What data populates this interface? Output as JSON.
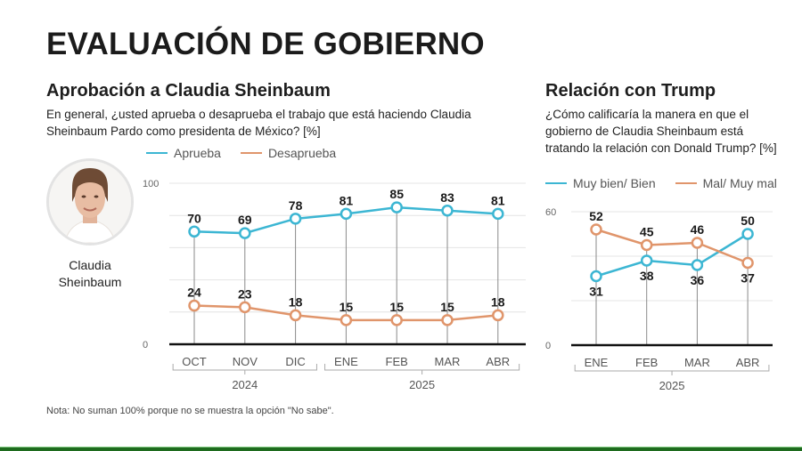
{
  "header": {
    "title": "EVALUACIÓN DE GOBIERNO"
  },
  "colors": {
    "approve": "#3cb6d3",
    "disapprove": "#e0956b",
    "brand_green": "#1e6b1e"
  },
  "left_panel": {
    "title": "Aprobación a Claudia Sheinbaum",
    "question": "En general, ¿usted aprueba o desaprueba el trabajo que está haciendo Claudia Sheinbaum Pardo como presidenta de México?  [%]",
    "legend": [
      "Aprueba",
      "Desaprueba"
    ],
    "person": {
      "name_line1": "Claudia",
      "name_line2": "Sheinbaum",
      "icon": "portrait-avatar"
    }
  },
  "right_panel": {
    "title": "Relación con Trump",
    "question": "¿Cómo calificaría la manera en que el gobierno de Claudia Sheinbaum está tratando la relación con Donald Trump? [%]",
    "legend": [
      "Muy bien/ Bien",
      "Mal/ Muy mal"
    ]
  },
  "note": "Nota: No suman 100% porque no se muestra la opción \"No sabe\".",
  "chart_data": [
    {
      "type": "line",
      "title": "Aprobación a Claudia Sheinbaum",
      "categories": [
        "OCT",
        "NOV",
        "DIC",
        "ENE",
        "FEB",
        "MAR",
        "ABR"
      ],
      "year_groups": [
        {
          "label": "2024",
          "from": 0,
          "to": 2
        },
        {
          "label": "2025",
          "from": 3,
          "to": 6
        }
      ],
      "series": [
        {
          "name": "Aprueba",
          "color": "#3cb6d3",
          "values": [
            70,
            69,
            78,
            81,
            85,
            83,
            81
          ],
          "label_pos": "above"
        },
        {
          "name": "Desaprueba",
          "color": "#e0956b",
          "values": [
            24,
            23,
            18,
            15,
            15,
            15,
            18
          ],
          "label_pos": "above"
        }
      ],
      "ylim": [
        0,
        100
      ],
      "yticks_labeled": [
        0,
        100
      ],
      "gridlines": [
        20,
        40,
        60,
        80,
        100
      ],
      "xlabel": "",
      "ylabel": "%",
      "grid": true,
      "legend": "top-left"
    },
    {
      "type": "line",
      "title": "Relación con Trump",
      "categories": [
        "ENE",
        "FEB",
        "MAR",
        "ABR"
      ],
      "year_groups": [
        {
          "label": "2025",
          "from": 0,
          "to": 3
        }
      ],
      "series": [
        {
          "name": "Muy bien/ Bien",
          "color": "#3cb6d3",
          "values": [
            31,
            38,
            36,
            50
          ],
          "label_pos": [
            "below",
            "below",
            "below",
            "above"
          ]
        },
        {
          "name": "Mal/ Muy mal",
          "color": "#e0956b",
          "values": [
            52,
            45,
            46,
            37
          ],
          "label_pos": [
            "above",
            "above",
            "above",
            "below"
          ]
        }
      ],
      "ylim": [
        0,
        60
      ],
      "yticks_labeled": [
        0,
        60
      ],
      "gridlines": [
        20,
        40,
        60
      ],
      "xlabel": "",
      "ylabel": "%",
      "grid": true,
      "legend": "top-left"
    }
  ]
}
